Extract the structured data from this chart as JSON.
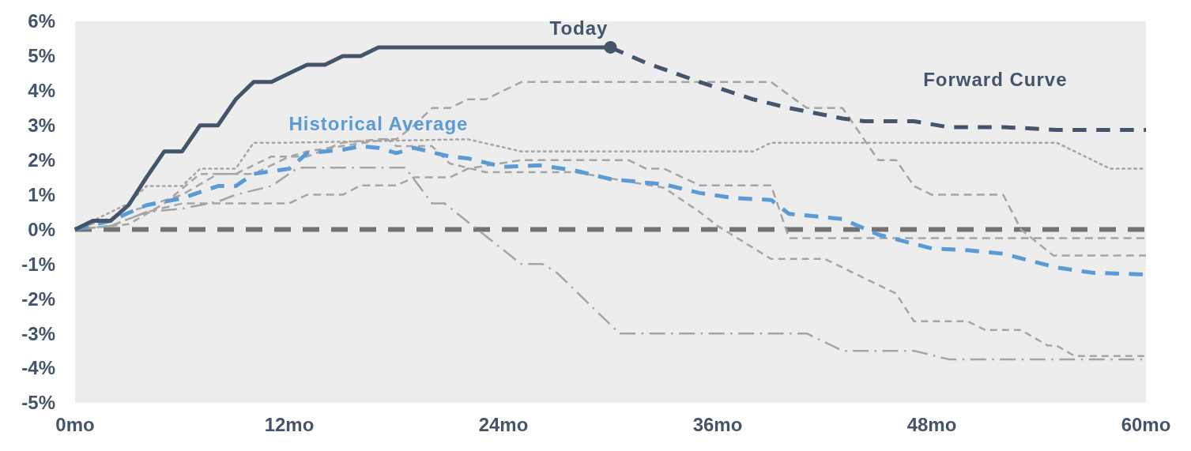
{
  "chart_data": {
    "type": "line",
    "xlim": [
      0,
      60
    ],
    "ylim": [
      -5,
      6
    ],
    "xticks": [
      {
        "value": 0,
        "label": "0mo"
      },
      {
        "value": 12,
        "label": "12mo"
      },
      {
        "value": 24,
        "label": "24mo"
      },
      {
        "value": 36,
        "label": "36mo"
      },
      {
        "value": 48,
        "label": "48mo"
      },
      {
        "value": 60,
        "label": "60mo"
      }
    ],
    "yticks": [
      {
        "value": -5,
        "label": "-5%"
      },
      {
        "value": -4,
        "label": "-4%"
      },
      {
        "value": -3,
        "label": "-3%"
      },
      {
        "value": -2,
        "label": "-2%"
      },
      {
        "value": -1,
        "label": "-1%"
      },
      {
        "value": 0,
        "label": "0%"
      },
      {
        "value": 1,
        "label": "1%"
      },
      {
        "value": 2,
        "label": "2%"
      },
      {
        "value": 3,
        "label": "3%"
      },
      {
        "value": 4,
        "label": "4%"
      },
      {
        "value": 5,
        "label": "5%"
      },
      {
        "value": 6,
        "label": "6%"
      }
    ],
    "grid": false,
    "ref_lines": [
      {
        "axis": "y",
        "value": 0,
        "color": "#767171",
        "line_style": "dashed"
      }
    ],
    "series": [
      {
        "color": "#a5a5a5",
        "line_style": "dashed",
        "x": [
          0,
          3,
          5,
          7,
          9,
          11,
          12,
          13,
          17.5,
          18,
          20,
          21,
          23,
          28,
          33,
          35,
          36,
          39,
          42,
          46,
          47,
          50,
          51,
          53,
          54.5,
          55,
          56,
          60
        ],
        "values": [
          0,
          0.15,
          0.75,
          1.6,
          1.6,
          2.1,
          2.1,
          2.25,
          2.6,
          2.4,
          2.4,
          1.9,
          1.65,
          1.65,
          1.2,
          0.5,
          0.1,
          -0.85,
          -0.85,
          -1.85,
          -2.65,
          -2.65,
          -2.9,
          -2.9,
          -3.35,
          -3.35,
          -3.65,
          -3.65
        ]
      },
      {
        "color": "#a5a5a5",
        "line_style": "shortdash",
        "x": [
          0,
          2,
          4,
          6,
          12,
          13,
          15,
          16,
          18,
          19,
          21,
          22,
          25,
          31,
          32,
          33,
          35,
          39,
          40,
          60
        ],
        "values": [
          0,
          0.1,
          0.5,
          0.75,
          0.75,
          1.0,
          1.0,
          1.27,
          1.27,
          1.5,
          1.5,
          1.75,
          2.0,
          2.0,
          1.75,
          1.75,
          1.27,
          1.27,
          -0.25,
          -0.25
        ]
      },
      {
        "color": "#a5a5a5",
        "line_style": "shortdash",
        "x": [
          0,
          3,
          6,
          8,
          10,
          12,
          13,
          15,
          17,
          18,
          19,
          20,
          21,
          22,
          23,
          25,
          39,
          41,
          43,
          45,
          46,
          47,
          48,
          52,
          53,
          54.8,
          60
        ],
        "values": [
          0,
          0.5,
          1.0,
          1.6,
          1.6,
          2.1,
          2.1,
          2.5,
          2.6,
          2.6,
          3.0,
          3.5,
          3.5,
          3.75,
          3.75,
          4.25,
          4.25,
          3.5,
          3.5,
          2.0,
          2.0,
          1.25,
          1.0,
          1.0,
          0,
          -0.75,
          -0.75
        ]
      },
      {
        "color": "#a5a5a5",
        "line_style": "dotted",
        "x": [
          0,
          3,
          4,
          6,
          7,
          9,
          10,
          12,
          22,
          25,
          38,
          39,
          55,
          58,
          60
        ],
        "values": [
          0,
          0.75,
          1.25,
          1.25,
          1.75,
          1.75,
          2.5,
          2.5,
          2.6,
          2.25,
          2.25,
          2.5,
          2.5,
          1.75,
          1.75
        ]
      },
      {
        "color": "#a5a5a5",
        "line_style": "dashdot",
        "x": [
          0,
          2,
          4,
          6,
          8,
          9,
          11,
          12.5,
          18.5,
          20,
          20.7,
          25,
          26.2,
          27,
          30.5,
          41,
          43,
          47,
          49,
          60
        ],
        "values": [
          0,
          0.1,
          0.5,
          0.6,
          0.8,
          1.0,
          1.25,
          1.78,
          1.78,
          0.75,
          0.75,
          -1.0,
          -1.0,
          -1.25,
          -3.0,
          -3.0,
          -3.5,
          -3.5,
          -3.75,
          -3.75
        ]
      },
      {
        "name": "Historical Average",
        "color": "#5b9bd5",
        "line_style": "dashed",
        "x": [
          0,
          2,
          4,
          6,
          8,
          9,
          10,
          12,
          13,
          15,
          16,
          17,
          18,
          19,
          21,
          22,
          24,
          26,
          28,
          30,
          32,
          33,
          35,
          37,
          39,
          40,
          43,
          45,
          48,
          50,
          52,
          55,
          57,
          60
        ],
        "values": [
          0,
          0.25,
          0.7,
          0.9,
          1.25,
          1.25,
          1.6,
          1.75,
          2.2,
          2.3,
          2.4,
          2.35,
          2.2,
          2.35,
          2.1,
          2.05,
          1.8,
          1.85,
          1.7,
          1.45,
          1.35,
          1.3,
          1.05,
          0.9,
          0.85,
          0.45,
          0.3,
          -0.15,
          -0.55,
          -0.6,
          -0.7,
          -1.1,
          -1.25,
          -1.3
        ]
      },
      {
        "name": "Today",
        "color": "#44546a",
        "line_style": "solid",
        "x": [
          0,
          1,
          2,
          3,
          4,
          5,
          6,
          7,
          8,
          9,
          10,
          11,
          12,
          13,
          14,
          15,
          16,
          17,
          30
        ],
        "values": [
          0,
          0.25,
          0.25,
          0.7,
          1.5,
          2.25,
          2.25,
          3.0,
          3.0,
          3.75,
          4.25,
          4.25,
          4.5,
          4.75,
          4.75,
          5.0,
          5.0,
          5.25,
          5.25
        ]
      },
      {
        "type": "scatter",
        "marker": "circle",
        "color": "#44546a",
        "x": [
          30
        ],
        "values": [
          5.25
        ]
      },
      {
        "name": "Forward Curve",
        "color": "#44546a",
        "line_style": "dashed",
        "x": [
          30,
          32,
          35,
          38,
          40,
          43,
          44.2,
          47,
          48.9,
          52,
          55,
          60
        ],
        "values": [
          5.25,
          4.8,
          4.25,
          3.75,
          3.5,
          3.2,
          3.12,
          3.12,
          2.95,
          2.95,
          2.87,
          2.87
        ]
      }
    ]
  }
}
